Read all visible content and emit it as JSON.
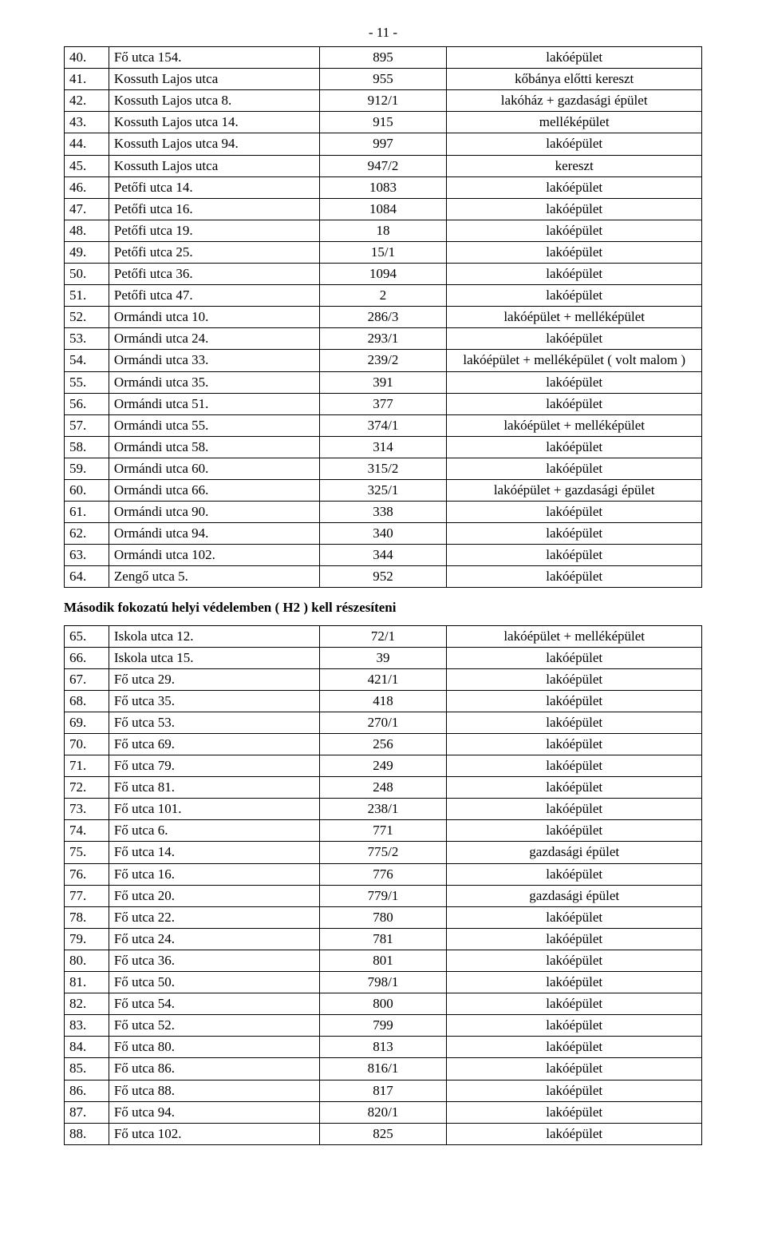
{
  "page_number_label": "- 11 -",
  "section_heading": "Második fokozatú helyi védelemben ( H2 ) kell részesíteni",
  "table1": {
    "rows": [
      {
        "n": "40.",
        "addr": "Fő utca  154.",
        "code": "895",
        "desc": "lakóépület"
      },
      {
        "n": "41.",
        "addr": "Kossuth Lajos utca",
        "code": "955",
        "desc": "kőbánya előtti kereszt"
      },
      {
        "n": "42.",
        "addr": "Kossuth Lajos utca 8.",
        "code": "912/1",
        "desc": "lakóház + gazdasági épület"
      },
      {
        "n": "43.",
        "addr": "Kossuth Lajos utca 14.",
        "code": "915",
        "desc": "melléképület"
      },
      {
        "n": "44.",
        "addr": "Kossuth Lajos utca 94.",
        "code": "997",
        "desc": "lakóépület"
      },
      {
        "n": "45.",
        "addr": "Kossuth Lajos utca",
        "code": "947/2",
        "desc": "kereszt"
      },
      {
        "n": "46.",
        "addr": "Petőfi utca 14.",
        "code": "1083",
        "desc": "lakóépület"
      },
      {
        "n": "47.",
        "addr": "Petőfi utca 16.",
        "code": "1084",
        "desc": "lakóépület"
      },
      {
        "n": "48.",
        "addr": "Petőfi utca 19.",
        "code": "18",
        "desc": "lakóépület"
      },
      {
        "n": "49.",
        "addr": "Petőfi utca 25.",
        "code": "15/1",
        "desc": "lakóépület"
      },
      {
        "n": "50.",
        "addr": "Petőfi utca 36.",
        "code": "1094",
        "desc": "lakóépület"
      },
      {
        "n": "51.",
        "addr": "Petőfi utca 47.",
        "code": "2",
        "desc": "lakóépület"
      },
      {
        "n": "52.",
        "addr": "Ormándi utca 10.",
        "code": "286/3",
        "desc": "lakóépület + melléképület"
      },
      {
        "n": "53.",
        "addr": "Ormándi utca 24.",
        "code": "293/1",
        "desc": "lakóépület"
      },
      {
        "n": "54.",
        "addr": "Ormándi utca 33.",
        "code": "239/2",
        "desc": "lakóépület + melléképület ( volt malom )"
      },
      {
        "n": "55.",
        "addr": "Ormándi utca 35.",
        "code": "391",
        "desc": "lakóépület"
      },
      {
        "n": "56.",
        "addr": "Ormándi utca 51.",
        "code": "377",
        "desc": "lakóépület"
      },
      {
        "n": "57.",
        "addr": "Ormándi utca 55.",
        "code": "374/1",
        "desc": "lakóépület + melléképület"
      },
      {
        "n": "58.",
        "addr": "Ormándi utca 58.",
        "code": "314",
        "desc": "lakóépület"
      },
      {
        "n": "59.",
        "addr": "Ormándi utca 60.",
        "code": "315/2",
        "desc": "lakóépület"
      },
      {
        "n": "60.",
        "addr": "Ormándi utca 66.",
        "code": "325/1",
        "desc": "lakóépület + gazdasági épület"
      },
      {
        "n": "61.",
        "addr": "Ormándi utca 90.",
        "code": "338",
        "desc": "lakóépület"
      },
      {
        "n": "62.",
        "addr": "Ormándi utca 94.",
        "code": "340",
        "desc": "lakóépület"
      },
      {
        "n": "63.",
        "addr": "Ormándi utca 102.",
        "code": "344",
        "desc": "lakóépület"
      },
      {
        "n": "64.",
        "addr": "Zengő utca 5.",
        "code": "952",
        "desc": "lakóépület"
      }
    ]
  },
  "table2": {
    "rows": [
      {
        "n": "65.",
        "addr": "Iskola utca 12.",
        "code": "72/1",
        "desc": "lakóépület + melléképület"
      },
      {
        "n": "66.",
        "addr": "Iskola utca 15.",
        "code": "39",
        "desc": "lakóépület"
      },
      {
        "n": "67.",
        "addr": "Fő utca 29.",
        "code": "421/1",
        "desc": "lakóépület"
      },
      {
        "n": "68.",
        "addr": "Fő utca 35.",
        "code": "418",
        "desc": "lakóépület"
      },
      {
        "n": "69.",
        "addr": "Fő utca 53.",
        "code": "270/1",
        "desc": "lakóépület"
      },
      {
        "n": "70.",
        "addr": "Fő utca 69.",
        "code": "256",
        "desc": "lakóépület"
      },
      {
        "n": "71.",
        "addr": "Fő utca 79.",
        "code": "249",
        "desc": "lakóépület"
      },
      {
        "n": "72.",
        "addr": "Fő utca 81.",
        "code": "248",
        "desc": "lakóépület"
      },
      {
        "n": "73.",
        "addr": "Fő utca 101.",
        "code": "238/1",
        "desc": "lakóépület"
      },
      {
        "n": "74.",
        "addr": "Fő utca 6.",
        "code": "771",
        "desc": "lakóépület"
      },
      {
        "n": "75.",
        "addr": "Fő utca 14.",
        "code": "775/2",
        "desc": "gazdasági épület"
      },
      {
        "n": "76.",
        "addr": "Fő utca 16.",
        "code": "776",
        "desc": "lakóépület"
      },
      {
        "n": "77.",
        "addr": "Fő utca 20.",
        "code": "779/1",
        "desc": "gazdasági épület"
      },
      {
        "n": "78.",
        "addr": "Fő utca 22.",
        "code": "780",
        "desc": "lakóépület"
      },
      {
        "n": "79.",
        "addr": "Fő utca 24.",
        "code": "781",
        "desc": "lakóépület"
      },
      {
        "n": "80.",
        "addr": "Fő utca 36.",
        "code": "801",
        "desc": "lakóépület"
      },
      {
        "n": "81.",
        "addr": "Fő utca 50.",
        "code": "798/1",
        "desc": "lakóépület"
      },
      {
        "n": "82.",
        "addr": "Fő utca 54.",
        "code": "800",
        "desc": "lakóépület"
      },
      {
        "n": "83.",
        "addr": "Fő utca 52.",
        "code": "799",
        "desc": "lakóépület"
      },
      {
        "n": "84.",
        "addr": "Fő utca 80.",
        "code": "813",
        "desc": "lakóépület"
      },
      {
        "n": "85.",
        "addr": "Fő utca 86.",
        "code": "816/1",
        "desc": "lakóépület"
      },
      {
        "n": "86.",
        "addr": "Fő utca 88.",
        "code": "817",
        "desc": "lakóépület"
      },
      {
        "n": "87.",
        "addr": "Fő utca 94.",
        "code": "820/1",
        "desc": "lakóépület"
      },
      {
        "n": "88.",
        "addr": "Fő utca 102.",
        "code": "825",
        "desc": "lakóépület"
      }
    ]
  }
}
